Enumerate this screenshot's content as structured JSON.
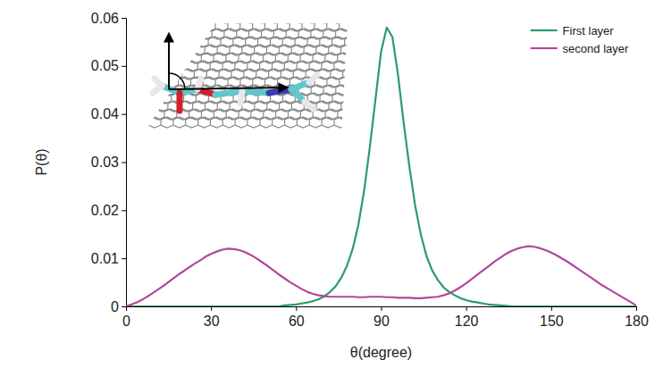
{
  "chart_data": {
    "type": "line",
    "x_label": "θ(degree)",
    "y_label": "P(θ)",
    "xlim": [
      0,
      180
    ],
    "xticks": [
      0,
      30,
      60,
      90,
      120,
      150,
      180
    ],
    "ylim": [
      0,
      0.06
    ],
    "yticks": [
      0,
      0.01,
      0.02,
      0.03,
      0.04,
      0.05,
      0.06
    ],
    "legend": "upper right",
    "x": [
      0,
      2,
      4,
      6,
      8,
      10,
      12,
      14,
      16,
      18,
      20,
      22,
      24,
      26,
      28,
      30,
      32,
      34,
      36,
      38,
      40,
      42,
      44,
      46,
      48,
      50,
      52,
      54,
      56,
      58,
      60,
      62,
      64,
      66,
      68,
      70,
      72,
      74,
      76,
      78,
      80,
      82,
      84,
      86,
      88,
      90,
      92,
      94,
      96,
      98,
      100,
      102,
      104,
      106,
      108,
      110,
      112,
      114,
      116,
      118,
      120,
      122,
      124,
      126,
      128,
      130,
      132,
      134,
      136,
      138,
      140,
      142,
      144,
      146,
      148,
      150,
      152,
      154,
      156,
      158,
      160,
      162,
      164,
      166,
      168,
      170,
      172,
      174,
      176,
      178,
      180
    ],
    "series": [
      {
        "name": "First layer",
        "color": "#2e9a6b",
        "values": [
          0,
          0,
          0,
          0,
          0,
          0,
          0,
          0,
          0,
          0,
          0,
          0,
          0,
          0,
          0,
          0,
          0,
          0,
          0,
          0,
          0,
          0,
          0,
          0,
          0,
          0,
          0,
          0,
          0.0002,
          0.0003,
          0.0004,
          0.0006,
          0.0008,
          0.0011,
          0.0015,
          0.0021,
          0.003,
          0.0042,
          0.006,
          0.0085,
          0.012,
          0.017,
          0.024,
          0.033,
          0.043,
          0.053,
          0.058,
          0.056,
          0.048,
          0.038,
          0.029,
          0.021,
          0.015,
          0.0105,
          0.0075,
          0.0055,
          0.004,
          0.003,
          0.0023,
          0.0017,
          0.0013,
          0.001,
          0.0008,
          0.0006,
          0.0004,
          0.0003,
          0.0002,
          0.0001,
          0,
          0,
          0,
          0,
          0,
          0,
          0,
          0,
          0,
          0,
          0,
          0,
          0,
          0,
          0,
          0,
          0,
          0,
          0,
          0,
          0,
          0,
          0
        ]
      },
      {
        "name": "second layer",
        "color": "#b0479c",
        "values": [
          0,
          0.0004,
          0.0009,
          0.0015,
          0.0022,
          0.003,
          0.0038,
          0.0046,
          0.0055,
          0.0064,
          0.0072,
          0.008,
          0.0088,
          0.0095,
          0.0103,
          0.0109,
          0.0114,
          0.0118,
          0.012,
          0.0119,
          0.0117,
          0.0113,
          0.0107,
          0.01,
          0.0092,
          0.0084,
          0.0075,
          0.0066,
          0.0058,
          0.005,
          0.0043,
          0.0036,
          0.003,
          0.0026,
          0.0023,
          0.0021,
          0.002,
          0.002,
          0.002,
          0.002,
          0.002,
          0.0019,
          0.0019,
          0.002,
          0.002,
          0.002,
          0.0019,
          0.0019,
          0.0018,
          0.0018,
          0.0018,
          0.0017,
          0.0017,
          0.0018,
          0.0019,
          0.002,
          0.0023,
          0.0027,
          0.0033,
          0.004,
          0.0048,
          0.0057,
          0.0066,
          0.0075,
          0.0084,
          0.0093,
          0.0101,
          0.0109,
          0.0115,
          0.012,
          0.0123,
          0.0125,
          0.0124,
          0.0121,
          0.0117,
          0.0112,
          0.0106,
          0.0099,
          0.0092,
          0.0084,
          0.0076,
          0.0068,
          0.006,
          0.0052,
          0.0044,
          0.0037,
          0.003,
          0.0023,
          0.0016,
          0.0009,
          0.0002
        ]
      }
    ]
  }
}
